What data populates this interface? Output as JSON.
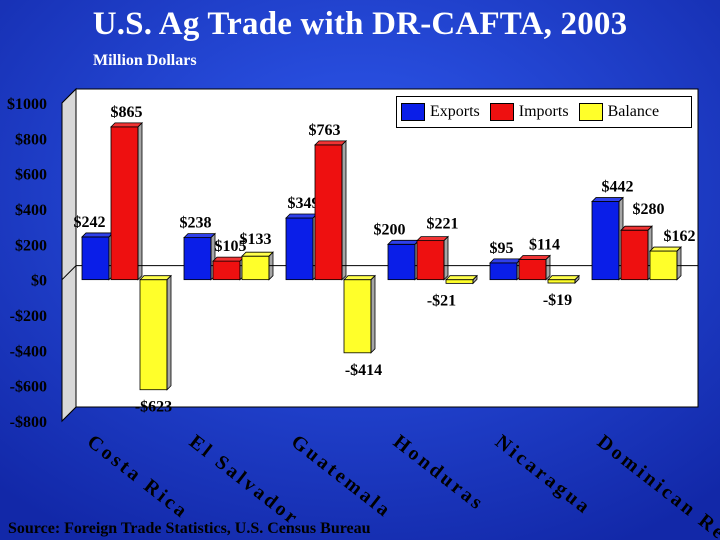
{
  "title": "U.S. Ag Trade with DR-CAFTA, 2003",
  "subtitle": "Million Dollars",
  "source": "Source: Foreign Trade Statistics, U.S. Census Bureau",
  "colors": {
    "background": "#1f3fc4",
    "exports": "#0a1ee8",
    "imports": "#ee1010",
    "balance": "#ffff2a",
    "axis_text": "#000000"
  },
  "chart_data": {
    "type": "bar",
    "categories": [
      "Costa Rica",
      "El Salvador",
      "Guatemala",
      "Honduras",
      "Nicaragua",
      "Dominican Rep"
    ],
    "series": [
      {
        "name": "Exports",
        "values": [
          242,
          238,
          349,
          200,
          95,
          442
        ]
      },
      {
        "name": "Imports",
        "values": [
          865,
          105,
          763,
          221,
          114,
          280
        ]
      },
      {
        "name": "Balance",
        "values": [
          -623,
          133,
          -414,
          -21,
          -19,
          162
        ]
      }
    ],
    "value_labels": [
      [
        "$242",
        "$865",
        "-$623"
      ],
      [
        "$238",
        "$105",
        "$133"
      ],
      [
        "$349",
        "$763",
        "-$414"
      ],
      [
        "$200",
        "$221",
        "-$21"
      ],
      [
        "$95",
        "$114",
        "-$19"
      ],
      [
        "$442",
        "$280",
        "$162"
      ]
    ],
    "y_ticks": [
      1000,
      800,
      600,
      400,
      200,
      0,
      -200,
      -400,
      -600,
      -800
    ],
    "y_tick_labels": [
      "$1000",
      "$800",
      "$600",
      "$400",
      "$200",
      "$0",
      "-$200",
      "-$400",
      "-$600",
      "-$800"
    ],
    "ylim": [
      -800,
      1000
    ],
    "grid": false,
    "legend_position": "top-right"
  }
}
